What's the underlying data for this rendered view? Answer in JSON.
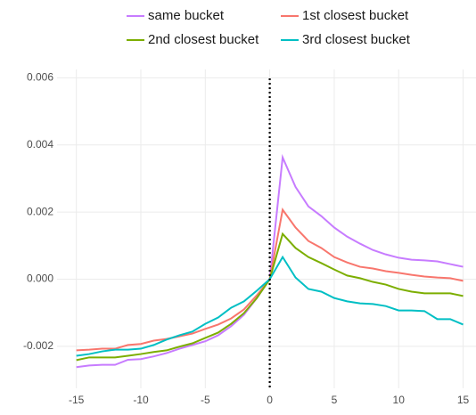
{
  "chart_data": {
    "type": "line",
    "x": [
      -15,
      -14,
      -13,
      -12,
      -11,
      -10,
      -9,
      -8,
      -7,
      -6,
      -5,
      -4,
      -3,
      -2,
      -1,
      0,
      1,
      2,
      3,
      4,
      5,
      6,
      7,
      8,
      9,
      10,
      11,
      12,
      13,
      14,
      15
    ],
    "series": [
      {
        "name": "same bucket",
        "color": "#C77CFF",
        "values": [
          -0.00262,
          -0.00257,
          -0.00255,
          -0.00255,
          -0.0024,
          -0.00238,
          -0.0023,
          -0.0022,
          -0.00207,
          -0.00196,
          -0.00185,
          -0.00167,
          -0.0014,
          -0.00106,
          -0.00056,
          0,
          0.00363,
          0.00275,
          0.00217,
          0.00188,
          0.00154,
          0.00127,
          0.00106,
          0.00087,
          0.00074,
          0.00064,
          0.00058,
          0.00056,
          0.00053,
          0.00045,
          0.00037
        ]
      },
      {
        "name": "1st closest bucket",
        "color": "#F8766D",
        "values": [
          -0.00212,
          -0.0021,
          -0.00207,
          -0.00207,
          -0.00196,
          -0.00193,
          -0.00183,
          -0.00178,
          -0.0017,
          -0.00162,
          -0.00148,
          -0.00135,
          -0.00117,
          -0.0009,
          -0.00048,
          0,
          0.00207,
          0.00154,
          0.00114,
          0.00093,
          0.00066,
          0.0005,
          0.00037,
          0.00032,
          0.00024,
          0.00019,
          0.00013,
          8e-05,
          5e-05,
          3e-05,
          -5e-05
        ]
      },
      {
        "name": "2nd closest bucket",
        "color": "#7CAE00",
        "values": [
          -0.00241,
          -0.00233,
          -0.00233,
          -0.00233,
          -0.00228,
          -0.00223,
          -0.00217,
          -0.00212,
          -0.00201,
          -0.00191,
          -0.00175,
          -0.00159,
          -0.00133,
          -0.00101,
          -0.00056,
          0,
          0.00135,
          0.00093,
          0.00066,
          0.00048,
          0.00029,
          0.00011,
          3e-05,
          -8e-05,
          -0.00016,
          -0.00029,
          -0.00037,
          -0.00042,
          -0.00042,
          -0.00042,
          -0.0005
        ]
      },
      {
        "name": "3rd closest bucket",
        "color": "#00BFC4",
        "values": [
          -0.00228,
          -0.00223,
          -0.00215,
          -0.0021,
          -0.0021,
          -0.00207,
          -0.00196,
          -0.0018,
          -0.00167,
          -0.00156,
          -0.00133,
          -0.00114,
          -0.00085,
          -0.00066,
          -0.00034,
          0,
          0.00066,
          5e-05,
          -0.00029,
          -0.00037,
          -0.00056,
          -0.00066,
          -0.00072,
          -0.00074,
          -0.0008,
          -0.00093,
          -0.00093,
          -0.00095,
          -0.00119,
          -0.00119,
          -0.00135
        ]
      }
    ],
    "xlim": [
      -16.5,
      16
    ],
    "xticks": [
      -15,
      -10,
      -5,
      0,
      5,
      10,
      15
    ],
    "ylim": [
      -0.00325,
      0.00625
    ],
    "yticks": [
      -0.002,
      {
        "value": 0,
        "label": "0.000"
      },
      0.002,
      0.004,
      0.006
    ],
    "vline": 0,
    "grid": true,
    "legend": "top"
  }
}
